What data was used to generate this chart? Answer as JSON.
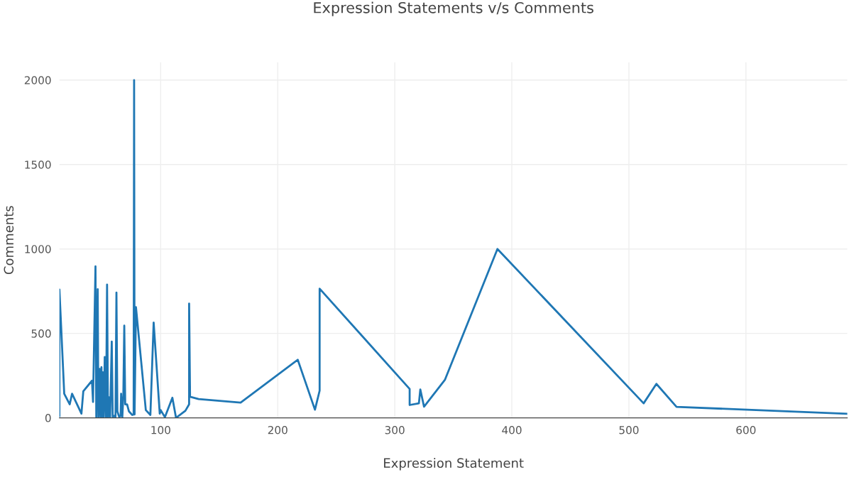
{
  "chart_data": {
    "type": "line",
    "title": "Expression Statements v/s Comments",
    "xlabel": "Expression Statement",
    "ylabel": "Comments",
    "series": [
      {
        "color": "#1f77b4",
        "x": [
          13.5,
          13.5,
          17.6,
          22.3,
          24.3,
          32.3,
          33.9,
          41.3,
          42.2,
          44.3,
          45,
          46.2,
          46.8,
          47.8,
          48.6,
          49.4,
          50.1,
          50.6,
          51.4,
          52.2,
          53.3,
          54.2,
          55,
          55.8,
          56.8,
          58.2,
          59,
          60.6,
          61.4,
          62.2,
          63,
          64.6,
          65.8,
          66.2,
          67.2,
          68.1,
          68.9,
          69.7,
          71.3,
          72.9,
          75.7,
          76.9,
          77.3,
          77.7,
          78.9,
          87.3,
          91.2,
          94,
          99.2,
          100,
          103.6,
          110,
          113.1,
          121.1,
          124.3,
          124.3,
          125.1,
          132.4,
          168.3,
          217.1,
          231.8,
          235.8,
          235.8,
          312.7,
          312.7,
          320.6,
          321.8,
          325,
          342.9,
          387.7,
          512.6,
          523.5,
          540.7,
          686.6
        ],
        "values": [
          10,
          760,
          143,
          80,
          143,
          25,
          157,
          220,
          94,
          897,
          4,
          762,
          0,
          290,
          0,
          300,
          4,
          270,
          0,
          360,
          0,
          789,
          0,
          122,
          0,
          452,
          4,
          13,
          4,
          742,
          38,
          4,
          13,
          143,
          0,
          133,
          546,
          80,
          80,
          38,
          17,
          20,
          2000,
          20,
          655,
          46,
          17,
          564,
          25,
          46,
          4,
          119,
          0,
          42,
          80,
          677,
          125,
          111,
          90,
          344,
          48,
          161,
          765,
          171,
          76,
          86,
          168,
          66,
          226,
          1000,
          86,
          201,
          65,
          24
        ]
      }
    ],
    "xlim": [
      13.5,
      686.6
    ],
    "xticks": [
      100,
      200,
      300,
      400,
      500,
      600
    ],
    "ylim": [
      0,
      2105
    ],
    "yticks": [
      0,
      500,
      1000,
      1500,
      2000
    ],
    "grid": true,
    "marker": "none",
    "line_style": "solid"
  }
}
